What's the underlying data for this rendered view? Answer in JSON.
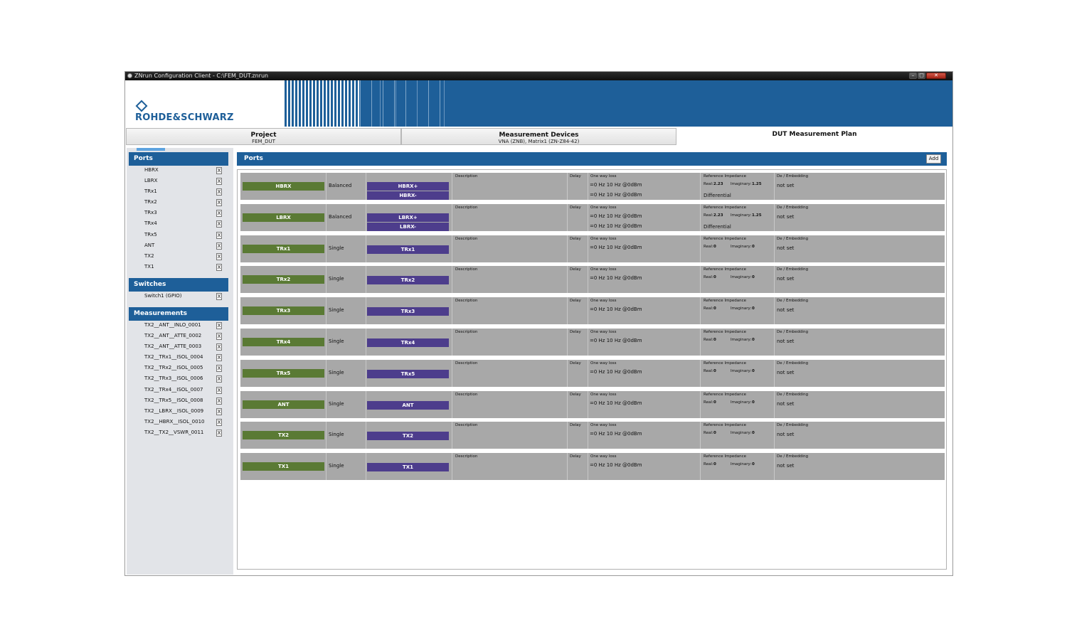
{
  "window": {
    "title": "ZNrun Configuration Client - C:\\FEM_DUT.znrun",
    "min": "–",
    "max": "□",
    "close": "✕"
  },
  "brand": {
    "logo_text": "ROHDE&SCHWARZ"
  },
  "tabs": [
    {
      "label": "Project",
      "sub": "FEM_DUT"
    },
    {
      "label": "Measurement Devices",
      "sub": "VNA (ZNB), Matrix1 (ZN-Z84-42)"
    },
    {
      "label": "DUT Measurement Plan",
      "sub": ""
    }
  ],
  "sidebar": {
    "ports_title": "Ports",
    "ports": [
      "HBRX",
      "LBRX",
      "TRx1",
      "TRx2",
      "TRx3",
      "TRx4",
      "TRx5",
      "ANT",
      "TX2",
      "TX1"
    ],
    "switches_title": "Switches",
    "switches": [
      "Switch1 (GPIO)"
    ],
    "measurements_title": "Measurements",
    "measurements": [
      "TX2__ANT__INLO_0001",
      "TX2__ANT__ATTE_0002",
      "TX2__ANT__ATTE_0003",
      "TX2__TRx1__ISOL_0004",
      "TX2__TRx2__ISOL_0005",
      "TX2__TRx3__ISOL_0006",
      "TX2__TRx4__ISOL_0007",
      "TX2__TRx5__ISOL_0008",
      "TX2__LBRX__ISOL_0009",
      "TX2__HBRX__ISOL_0010",
      "TX2__TX2__VSWR_0011"
    ],
    "remove_label": "X"
  },
  "main": {
    "title": "Ports",
    "add_label": "Add",
    "col": {
      "description": "Description",
      "delay": "Delay",
      "loss": "One way loss",
      "ref_imp": "Reference Impedance",
      "deemb": "De / Embedding",
      "real": "Real:",
      "imag": "Imaginary:",
      "loss_value": "=0 Hz 10 Hz @0dBm",
      "differential": "Differential",
      "not_set": "not set"
    },
    "ports": [
      {
        "name": "HBRX",
        "type": "Balanced",
        "phys": [
          "HBRX+",
          "HBRX-"
        ],
        "real": "2.23",
        "imag": "1.25"
      },
      {
        "name": "LBRX",
        "type": "Balanced",
        "phys": [
          "LBRX+",
          "LBRX-"
        ],
        "real": "2.23",
        "imag": "1.25"
      },
      {
        "name": "TRx1",
        "type": "Single",
        "phys": [
          "TRx1"
        ],
        "real": "0",
        "imag": "0"
      },
      {
        "name": "TRx2",
        "type": "Single",
        "phys": [
          "TRx2"
        ],
        "real": "0",
        "imag": "0"
      },
      {
        "name": "TRx3",
        "type": "Single",
        "phys": [
          "TRx3"
        ],
        "real": "0",
        "imag": "0"
      },
      {
        "name": "TRx4",
        "type": "Single",
        "phys": [
          "TRx4"
        ],
        "real": "0",
        "imag": "0"
      },
      {
        "name": "TRx5",
        "type": "Single",
        "phys": [
          "TRx5"
        ],
        "real": "0",
        "imag": "0"
      },
      {
        "name": "ANT",
        "type": "Single",
        "phys": [
          "ANT"
        ],
        "real": "0",
        "imag": "0"
      },
      {
        "name": "TX2",
        "type": "Single",
        "phys": [
          "TX2"
        ],
        "real": "0",
        "imag": "0"
      },
      {
        "name": "TX1",
        "type": "Single",
        "phys": [
          "TX1"
        ],
        "real": "0",
        "imag": "0"
      }
    ]
  }
}
